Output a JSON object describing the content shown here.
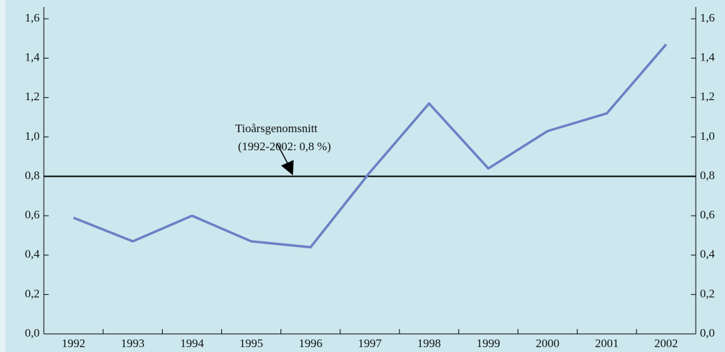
{
  "chart_data": {
    "type": "line",
    "categories": [
      "1992",
      "1993",
      "1994",
      "1995",
      "1996",
      "1997",
      "1998",
      "1999",
      "2000",
      "2001",
      "2002"
    ],
    "values": [
      0.59,
      0.47,
      0.6,
      0.47,
      0.44,
      0.82,
      1.17,
      0.84,
      1.03,
      1.12,
      1.47
    ],
    "color": "#6b80c6",
    "ylim": [
      0,
      1.6
    ],
    "yticks": [
      {
        "value": 0,
        "label": "0,0"
      },
      {
        "value": 0.2,
        "label": "0,2"
      },
      {
        "value": 0.4,
        "label": "0,4"
      },
      {
        "value": 0.6,
        "label": "0,6"
      },
      {
        "value": 0.8,
        "label": "0,8"
      },
      {
        "value": 1.0,
        "label": "1,0"
      },
      {
        "value": 1.2,
        "label": "1,2"
      },
      {
        "value": 1.4,
        "label": "1,4"
      },
      {
        "value": 1.6,
        "label": "1,6"
      }
    ],
    "y2lim": [
      0,
      1.6
    ],
    "y2ticks": [
      {
        "value": 0,
        "label": "0,0"
      },
      {
        "value": 0.2,
        "label": "0,2"
      },
      {
        "value": 0.4,
        "label": "0,4"
      },
      {
        "value": 0.6,
        "label": "0,6"
      },
      {
        "value": 0.8,
        "label": "0,8"
      },
      {
        "value": 1.0,
        "label": "1,0"
      },
      {
        "value": 1.2,
        "label": "1,2"
      },
      {
        "value": 1.4,
        "label": "1,4"
      },
      {
        "value": 1.6,
        "label": "1,6"
      }
    ],
    "grid": false,
    "reference_line": {
      "value": 0.8,
      "color": "#000000"
    },
    "annotation": [
      "Tioårsgenomsnitt",
      "(1992-2002: 0,8 %)"
    ]
  }
}
